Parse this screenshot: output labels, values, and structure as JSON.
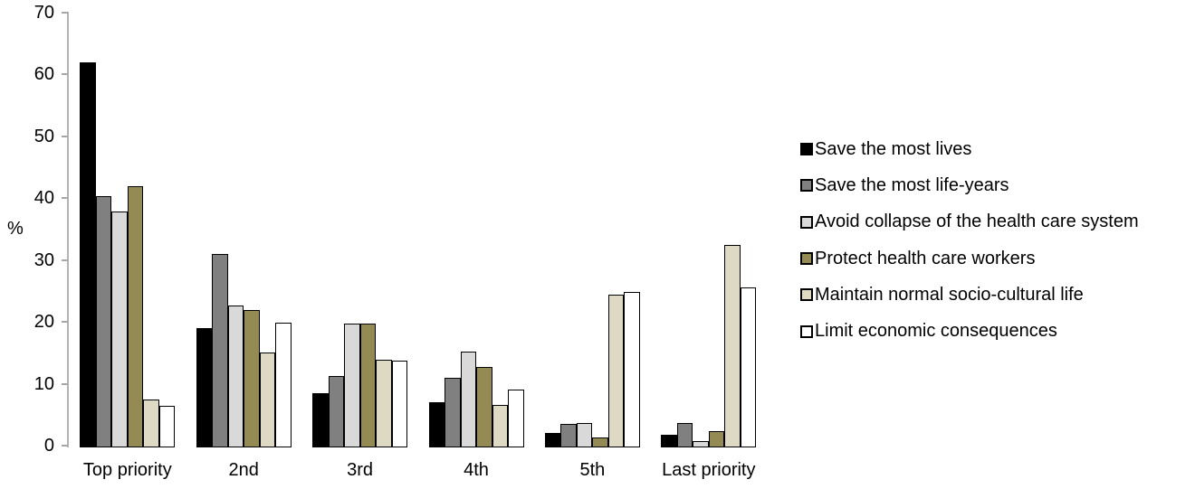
{
  "chart_data": {
    "type": "bar",
    "categories": [
      "Top priority",
      "2nd",
      "3rd",
      "4th",
      "5th",
      "Last priority"
    ],
    "series": [
      {
        "name": "Save the most lives",
        "color": "#000000",
        "values": [
          62,
          19,
          8.5,
          7,
          2.1,
          1.8
        ]
      },
      {
        "name": "Save the most life-years",
        "color": "#808080",
        "values": [
          40.3,
          31,
          11.2,
          11,
          3.5,
          3.6
        ]
      },
      {
        "name": "Avoid collapse of the health care system",
        "color": "#d9d9d9",
        "values": [
          37.8,
          22.7,
          19.7,
          15.2,
          3.6,
          0.7
        ]
      },
      {
        "name": "Protect health care workers",
        "color": "#948a54",
        "values": [
          42,
          21.9,
          19.7,
          12.7,
          1.3,
          2.3
        ]
      },
      {
        "name": "Maintain normal socio-cultural life",
        "color": "#ddd9c3",
        "values": [
          7.5,
          15,
          13.9,
          6.6,
          24.4,
          32.5
        ]
      },
      {
        "name": "Limit economic consequences",
        "color": "#ffffff",
        "values": [
          6.5,
          19.9,
          13.8,
          9.1,
          24.9,
          25.6
        ]
      }
    ],
    "ylabel": "%",
    "ylim": [
      0,
      70
    ],
    "yticks": [
      0,
      10,
      20,
      30,
      40,
      50,
      60,
      70
    ],
    "legend_position": "right",
    "grid": false,
    "colors": {
      "axis_line": "#b3b3b3",
      "tick": "#a6a6a6",
      "bar_border": "#000000",
      "text": "#000000",
      "background": "#ffffff"
    }
  }
}
